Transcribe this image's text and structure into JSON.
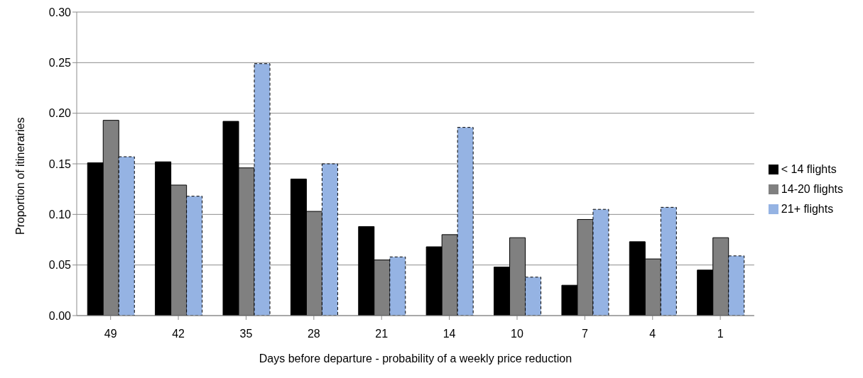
{
  "chart_data": {
    "type": "bar",
    "xlabel": "Days before departure - probability of a weekly price reduction",
    "ylabel": "Proportion of itineraries",
    "categories": [
      "49",
      "42",
      "35",
      "28",
      "21",
      "14",
      "10",
      "7",
      "4",
      "1"
    ],
    "series": [
      {
        "name": "< 14 flights",
        "color": "#000000",
        "values": [
          0.151,
          0.152,
          0.192,
          0.135,
          0.088,
          0.068,
          0.048,
          0.03,
          0.073,
          0.045
        ]
      },
      {
        "name": "14-20 flights",
        "color": "#808080",
        "values": [
          0.193,
          0.129,
          0.146,
          0.103,
          0.055,
          0.08,
          0.077,
          0.095,
          0.056,
          0.077
        ]
      },
      {
        "name": "21+ flights",
        "color": "#95b3e3",
        "line_style": "dashed",
        "values": [
          0.157,
          0.118,
          0.249,
          0.15,
          0.058,
          0.186,
          0.038,
          0.105,
          0.107,
          0.059
        ]
      }
    ],
    "ylim": [
      0,
      0.3
    ],
    "yticks": [
      {
        "value": 0,
        "label": "0.00"
      },
      {
        "value": 0.05,
        "label": "0.05"
      },
      {
        "value": 0.1,
        "label": "0.10"
      },
      {
        "value": 0.15,
        "label": "0.15"
      },
      {
        "value": 0.2,
        "label": "0.20"
      },
      {
        "value": 0.25,
        "label": "0.25"
      },
      {
        "value": 0.3,
        "label": "0.30"
      }
    ],
    "grid": "y",
    "legend": "right"
  }
}
